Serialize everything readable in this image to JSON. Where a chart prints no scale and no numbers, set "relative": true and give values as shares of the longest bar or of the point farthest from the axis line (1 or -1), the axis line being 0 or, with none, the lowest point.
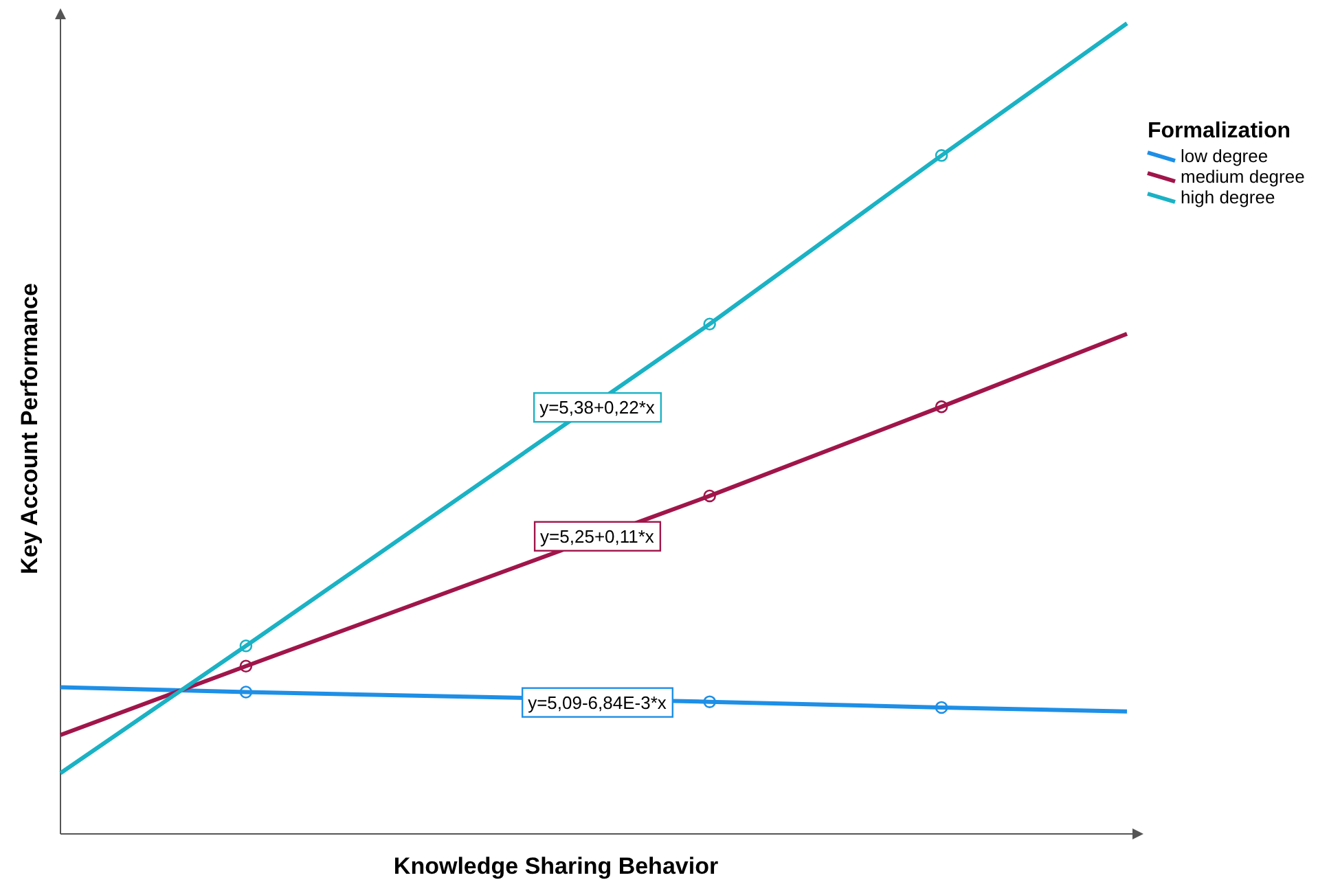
{
  "chart_data": {
    "type": "line",
    "relative": true,
    "xlabel": "Knowledge Sharing Behavior",
    "ylabel": "Key Account Performance",
    "legend_title": "Formalization",
    "legend": "top right",
    "line_style": "solid",
    "marker": "circle",
    "categories": [
      null,
      null,
      null,
      null,
      null,
      null,
      null,
      null,
      null,
      null,
      null,
      null,
      null,
      null,
      null,
      null,
      null,
      null,
      null,
      null,
      null,
      null,
      null,
      null
    ],
    "series": [
      {
        "name": "low degree",
        "color": "#1e8fe6",
        "values": [
          0.181,
          null,
          null,
          null,
          0.175,
          null,
          null,
          null,
          null,
          null,
          null,
          null,
          null,
          null,
          0.163,
          null,
          null,
          null,
          null,
          0.156,
          null,
          null,
          null,
          0.151
        ]
      },
      {
        "name": "medium degree",
        "color": "#a0154a",
        "values": [
          0.122,
          null,
          null,
          null,
          0.207,
          null,
          null,
          null,
          null,
          null,
          null,
          null,
          null,
          null,
          0.417,
          null,
          null,
          null,
          null,
          0.527,
          null,
          null,
          null,
          0.617
        ]
      },
      {
        "name": "high degree",
        "color": "#1ab2c4",
        "values": [
          0.075,
          null,
          null,
          null,
          0.232,
          null,
          null,
          null,
          null,
          null,
          null,
          null,
          null,
          null,
          0.629,
          null,
          null,
          null,
          null,
          0.837,
          null,
          null,
          null,
          1
        ]
      }
    ],
    "annotations": [
      {
        "text": "y=5,09-6,84E-3*x",
        "y": 0.163
      },
      {
        "text": "y=5,25+0,11*x",
        "y": 0.368
      },
      {
        "text": "y=5,38+0,22*x",
        "y": 0.527
      }
    ]
  }
}
